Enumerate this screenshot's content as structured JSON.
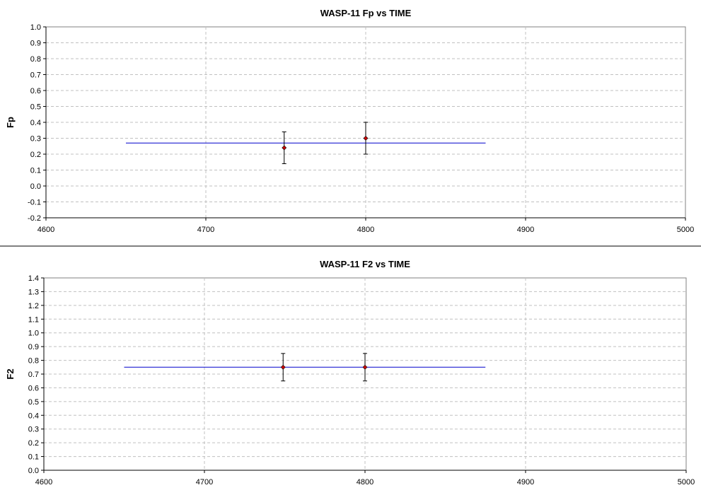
{
  "chart_data": [
    {
      "type": "scatter",
      "title": "WASP-11 Fp vs TIME",
      "xlabel": "",
      "ylabel": "Fp",
      "xlim": [
        4600,
        5000
      ],
      "ylim": [
        -0.2,
        1.0
      ],
      "x_ticks": [
        "4600",
        "4700",
        "4800",
        "4900",
        "5000"
      ],
      "y_ticks": [
        "-0.2",
        "-0.1",
        "0.0",
        "0.1",
        "0.2",
        "0.3",
        "0.4",
        "0.5",
        "0.6",
        "0.7",
        "0.8",
        "0.9",
        "1.0"
      ],
      "grid": true,
      "points": [
        {
          "x": 4749,
          "y": 0.24,
          "err": 0.1
        },
        {
          "x": 4800,
          "y": 0.3,
          "err": 0.1
        }
      ],
      "fit_line": {
        "x": [
          4650,
          4875
        ],
        "y": 0.27
      },
      "colors": {
        "points": "#cc0000",
        "fit_line": "#0000cc",
        "grid": "#c0c0c0"
      }
    },
    {
      "type": "scatter",
      "title": "WASP-11 F2 vs TIME",
      "xlabel": "",
      "ylabel": "F2",
      "xlim": [
        4600,
        5000
      ],
      "ylim": [
        0.0,
        1.4
      ],
      "x_ticks": [
        "4600",
        "4700",
        "4800",
        "4900",
        "5000"
      ],
      "y_ticks": [
        "0.0",
        "0.1",
        "0.2",
        "0.3",
        "0.4",
        "0.5",
        "0.6",
        "0.7",
        "0.8",
        "0.9",
        "1.0",
        "1.1",
        "1.2",
        "1.3",
        "1.4"
      ],
      "grid": true,
      "points": [
        {
          "x": 4749,
          "y": 0.75,
          "err": 0.1
        },
        {
          "x": 4800,
          "y": 0.75,
          "err": 0.1
        }
      ],
      "fit_line": {
        "x": [
          4650,
          4875
        ],
        "y": 0.75
      },
      "colors": {
        "points": "#cc0000",
        "fit_line": "#0000cc",
        "grid": "#c0c0c0"
      }
    }
  ]
}
